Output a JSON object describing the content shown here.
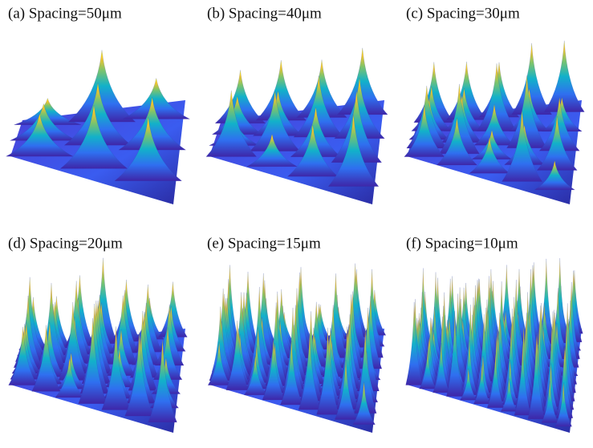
{
  "panels": [
    {
      "label": "(a) Spacing=50μm"
    },
    {
      "label": "(b) Spacing=40μm"
    },
    {
      "label": "(c) Spacing=30μm"
    },
    {
      "label": "(d) Spacing=20μm"
    },
    {
      "label": "(e) Spacing=15μm"
    },
    {
      "label": "(f) Spacing=10μm"
    }
  ]
}
